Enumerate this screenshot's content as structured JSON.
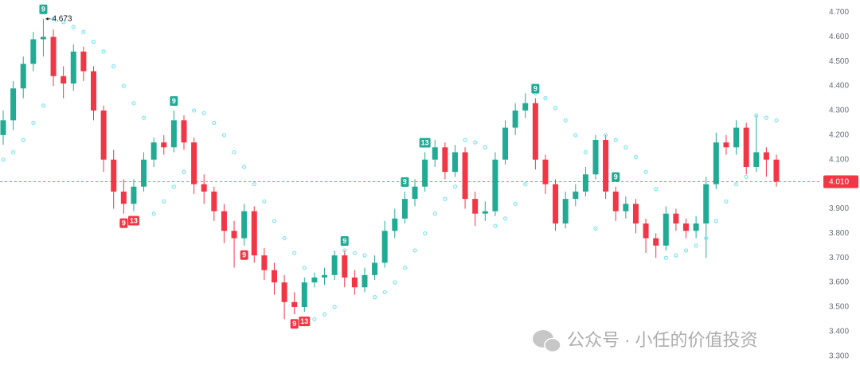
{
  "chart_data": {
    "type": "candlestick",
    "open": [
      4.2,
      4.26,
      4.39,
      4.49,
      4.59,
      4.6,
      4.44,
      4.41,
      4.54,
      4.46,
      4.3,
      4.1,
      3.97,
      3.92,
      3.99,
      4.1,
      4.17,
      4.15,
      4.26,
      4.17,
      4.0,
      3.97,
      3.89,
      3.81,
      3.78,
      3.89,
      3.71,
      3.65,
      3.6,
      3.52,
      3.5,
      3.6,
      3.62,
      3.63,
      3.71,
      3.62,
      3.58,
      3.63,
      3.68,
      3.81,
      3.86,
      3.94,
      3.99,
      4.1,
      4.15,
      4.05,
      4.13,
      3.94,
      3.88,
      3.89,
      4.1,
      4.23,
      4.3,
      4.33,
      4.1,
      4.0,
      3.84,
      3.94,
      3.97,
      4.04,
      4.18,
      3.97,
      3.89,
      3.92,
      3.84,
      3.78,
      3.75,
      3.88,
      3.84,
      3.81,
      3.84,
      4.0,
      4.17,
      4.15,
      4.23,
      4.07,
      4.13,
      4.1
    ],
    "high": [
      4.3,
      4.42,
      4.52,
      4.62,
      4.673,
      4.63,
      4.48,
      4.57,
      4.56,
      4.48,
      4.32,
      4.14,
      4.02,
      4.02,
      4.13,
      4.19,
      4.2,
      4.3,
      4.28,
      4.19,
      4.04,
      3.99,
      3.92,
      3.85,
      3.92,
      3.91,
      3.74,
      3.68,
      3.63,
      3.56,
      3.62,
      3.64,
      3.66,
      3.73,
      3.73,
      3.65,
      3.66,
      3.71,
      3.85,
      3.9,
      3.97,
      4.02,
      4.13,
      4.18,
      4.17,
      4.16,
      4.15,
      3.97,
      3.93,
      4.13,
      4.26,
      4.33,
      4.37,
      4.35,
      4.12,
      4.02,
      3.97,
      4.0,
      4.07,
      4.2,
      4.2,
      3.99,
      3.95,
      3.94,
      3.86,
      3.8,
      3.91,
      3.9,
      3.86,
      3.87,
      4.03,
      4.21,
      4.2,
      4.26,
      4.25,
      4.28,
      4.15,
      4.12
    ],
    "low": [
      4.16,
      4.22,
      4.35,
      4.46,
      4.52,
      4.4,
      4.35,
      4.38,
      4.42,
      4.26,
      4.05,
      3.9,
      3.88,
      3.89,
      3.97,
      4.07,
      4.12,
      4.13,
      4.14,
      3.96,
      3.92,
      3.85,
      3.76,
      3.66,
      3.75,
      3.68,
      3.61,
      3.55,
      3.45,
      3.47,
      3.48,
      3.58,
      3.59,
      3.61,
      3.58,
      3.55,
      3.56,
      3.61,
      3.66,
      3.78,
      3.84,
      3.91,
      3.97,
      4.07,
      4.02,
      4.03,
      3.9,
      3.83,
      3.85,
      3.87,
      4.08,
      4.2,
      4.27,
      4.06,
      3.96,
      3.81,
      3.82,
      3.91,
      3.95,
      4.02,
      3.94,
      3.85,
      3.86,
      3.8,
      3.72,
      3.7,
      3.73,
      3.81,
      3.78,
      3.78,
      3.7,
      3.98,
      4.12,
      4.12,
      4.04,
      4.05,
      4.03,
      3.99
    ],
    "close": [
      4.26,
      4.39,
      4.49,
      4.59,
      4.6,
      4.44,
      4.41,
      4.54,
      4.46,
      4.3,
      4.1,
      3.97,
      3.92,
      3.99,
      4.1,
      4.17,
      4.15,
      4.26,
      4.17,
      4.0,
      3.97,
      3.89,
      3.81,
      3.78,
      3.89,
      3.71,
      3.65,
      3.6,
      3.52,
      3.5,
      3.6,
      3.62,
      3.63,
      3.71,
      3.62,
      3.58,
      3.63,
      3.68,
      3.81,
      3.86,
      3.94,
      3.99,
      4.1,
      4.15,
      4.05,
      4.13,
      3.94,
      3.88,
      3.89,
      4.1,
      4.23,
      4.3,
      4.33,
      4.1,
      4.0,
      3.84,
      3.94,
      3.97,
      4.04,
      4.18,
      3.97,
      3.89,
      3.92,
      3.84,
      3.78,
      3.75,
      3.88,
      3.84,
      3.81,
      3.84,
      4.0,
      4.17,
      4.15,
      4.23,
      4.07,
      4.13,
      4.1,
      4.01
    ],
    "sar": [
      4.1,
      4.13,
      4.18,
      4.25,
      4.32,
      4.673,
      4.66,
      4.64,
      4.62,
      4.58,
      4.54,
      4.48,
      4.4,
      4.33,
      4.27,
      3.88,
      3.93,
      3.99,
      4.05,
      4.3,
      4.29,
      4.25,
      4.2,
      4.13,
      4.07,
      4.0,
      3.93,
      3.85,
      3.78,
      3.72,
      3.66,
      3.45,
      3.47,
      3.5,
      3.73,
      3.72,
      3.71,
      3.54,
      3.56,
      3.6,
      3.66,
      3.73,
      3.8,
      3.88,
      3.94,
      3.99,
      4.18,
      4.17,
      4.15,
      3.83,
      3.86,
      3.92,
      4.0,
      4.37,
      4.35,
      4.31,
      4.26,
      4.2,
      4.13,
      3.82,
      4.2,
      4.18,
      4.15,
      4.11,
      4.05,
      3.98,
      3.7,
      3.71,
      3.73,
      3.75,
      3.78,
      3.85,
      3.93,
      4.0,
      4.03,
      4.28,
      4.27,
      4.26
    ],
    "up_color": "#22ab94",
    "down_color": "#f23645",
    "sar_color": "#7fe3ef",
    "td_labels": [
      {
        "index": 4,
        "label": "9",
        "position": "above"
      },
      {
        "index": 12,
        "label": "9",
        "position": "below"
      },
      {
        "index": 13,
        "label": "13",
        "position": "below"
      },
      {
        "index": 17,
        "label": "9",
        "position": "above"
      },
      {
        "index": 24,
        "label": "9",
        "position": "below"
      },
      {
        "index": 29,
        "label": "9",
        "position": "below"
      },
      {
        "index": 30,
        "label": "13",
        "position": "below"
      },
      {
        "index": 34,
        "label": "9",
        "position": "above"
      },
      {
        "index": 40,
        "label": "9",
        "position": "above"
      },
      {
        "index": 42,
        "label": "13",
        "position": "above"
      },
      {
        "index": 53,
        "label": "9",
        "position": "above"
      },
      {
        "index": 61,
        "label": "9",
        "position": "above"
      }
    ],
    "high_marker": 4.673,
    "last_price": {
      "value": 4.01,
      "label": "4.010"
    },
    "ylim": [
      3.27,
      4.75
    ],
    "yticks": [
      {
        "value": 3.3,
        "label": "3.300"
      },
      {
        "value": 3.4,
        "label": "3.400"
      },
      {
        "value": 3.5,
        "label": "3.500"
      },
      {
        "value": 3.6,
        "label": "3.600"
      },
      {
        "value": 3.7,
        "label": "3.700"
      },
      {
        "value": 3.8,
        "label": "3.800"
      },
      {
        "value": 3.9,
        "label": "3.900"
      },
      {
        "value": 4.0,
        "label": "4.000"
      },
      {
        "value": 4.1,
        "label": "4.100"
      },
      {
        "value": 4.2,
        "label": "4.200"
      },
      {
        "value": 4.3,
        "label": "4.300"
      },
      {
        "value": 4.4,
        "label": "4.400"
      },
      {
        "value": 4.5,
        "label": "4.500"
      },
      {
        "value": 4.6,
        "label": "4.600"
      },
      {
        "value": 4.7,
        "label": "4.700"
      }
    ],
    "watermark": "公众号 · 小任的价值投资"
  }
}
